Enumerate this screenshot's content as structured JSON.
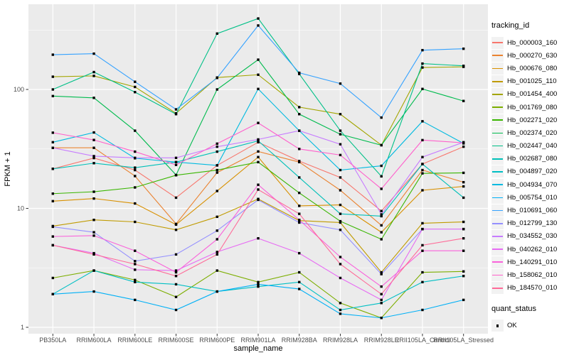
{
  "figure": {
    "background": "#FFFFFF",
    "panel_background": "#EBEBEB",
    "grid_color": "#FFFFFF",
    "axis_text_color": "#4D4D4D",
    "axis_title_color": "#000000"
  },
  "chart_data": {
    "type": "line",
    "title": "",
    "xlabel": "sample_name",
    "ylabel": "FPKM + 1",
    "y_scale": "log10",
    "ylim": [
      1,
      450
    ],
    "y_tick_labels": [
      "1",
      "10",
      "100"
    ],
    "y_tick_values": [
      1,
      10,
      100
    ],
    "y_minor_gridline_values": [
      3.162,
      31.62,
      316.2
    ],
    "grid": "on",
    "legend_position": "right",
    "legend_title": "tracking_id",
    "point_legend": {
      "title": "quant_status",
      "items": [
        "OK"
      ],
      "point_color": "#000000"
    },
    "marker": "black-square",
    "categories": [
      "PB350LA",
      "RRIM600LA",
      "RRIM600LE",
      "RRIM600SE",
      "RRIM600PE",
      "RRIM901LA",
      "RRIM928BA",
      "RRIM928LA",
      "RRIM928LE",
      "RRII105LA_Control",
      "RRII105LA_Stressed"
    ],
    "series": [
      {
        "name": "Hb_000003_160",
        "color": "#F8766D",
        "values": [
          21.5,
          26.5,
          21,
          12.3,
          23,
          36,
          25,
          18.2,
          9.5,
          23.6,
          33
        ]
      },
      {
        "name": "Hb_000270_630",
        "color": "#EA8331",
        "values": [
          32.3,
          32.3,
          18.7,
          7.4,
          20,
          30.1,
          24.5,
          14.2,
          7.2,
          21,
          16.6
        ]
      },
      {
        "name": "Hb_000676_080",
        "color": "#D89000",
        "values": [
          11.5,
          12.1,
          11,
          7.3,
          14,
          27,
          10.5,
          10.7,
          6.3,
          14.2,
          15.3
        ]
      },
      {
        "name": "Hb_001025_110",
        "color": "#C09B00",
        "values": [
          7.1,
          8.0,
          7.7,
          6.6,
          8.5,
          12,
          7.9,
          7.6,
          2.9,
          7.5,
          7.7
        ]
      },
      {
        "name": "Hb_001454_400",
        "color": "#A3A500",
        "values": [
          128,
          130,
          105,
          63,
          126,
          133,
          71,
          62,
          34,
          153,
          155
        ]
      },
      {
        "name": "Hb_001769_080",
        "color": "#7CAE00",
        "values": [
          2.6,
          3.0,
          2.5,
          1.8,
          3.0,
          2.4,
          2.9,
          1.6,
          1.2,
          2.9,
          2.95
        ]
      },
      {
        "name": "Hb_002271_020",
        "color": "#39B600",
        "values": [
          13.3,
          13.8,
          15,
          19,
          21,
          24.5,
          13.5,
          7.8,
          5.5,
          19.7,
          19.9
        ]
      },
      {
        "name": "Hb_002374_020",
        "color": "#00BB4E",
        "values": [
          88,
          85,
          45,
          19.1,
          100,
          178,
          62,
          42,
          34,
          101,
          80
        ]
      },
      {
        "name": "Hb_002447_040",
        "color": "#00C087",
        "values": [
          100,
          140,
          95,
          62,
          295,
          395,
          135,
          45,
          18.6,
          165,
          158
        ]
      },
      {
        "name": "Hb_002687_080",
        "color": "#00C0B8",
        "values": [
          21.5,
          24,
          22,
          24.5,
          30,
          37,
          18.2,
          9.0,
          8.6,
          23.6,
          12.3
        ]
      },
      {
        "name": "Hb_004897_020",
        "color": "#00BFC4",
        "values": [
          1.9,
          3.0,
          2.4,
          2.3,
          2.0,
          2.2,
          2.4,
          1.4,
          1.6,
          2.4,
          2.7
        ]
      },
      {
        "name": "Hb_004934_070",
        "color": "#00BAE0",
        "values": [
          36,
          43.5,
          26.4,
          24.5,
          23,
          101,
          45,
          21,
          22.8,
          54,
          35.2
        ]
      },
      {
        "name": "Hb_005754_010",
        "color": "#00B0F6",
        "values": [
          1.9,
          2.0,
          1.7,
          1.4,
          2.0,
          2.3,
          2.1,
          1.3,
          1.2,
          1.4,
          1.7
        ]
      },
      {
        "name": "Hb_010691_060",
        "color": "#35A2FF",
        "values": [
          196,
          200,
          116,
          68,
          125,
          345,
          138,
          112,
          58,
          214,
          220
        ]
      },
      {
        "name": "Hb_012799_130",
        "color": "#9590FF",
        "values": [
          7.0,
          6.3,
          3.6,
          4.1,
          6.5,
          11.8,
          7.6,
          6.6,
          2.8,
          6.7,
          6.7
        ]
      },
      {
        "name": "Hb_034552_030",
        "color": "#C77CFF",
        "values": [
          32.3,
          27.5,
          26.6,
          26.6,
          33,
          38,
          45,
          34.6,
          8.9,
          27,
          36
        ]
      },
      {
        "name": "Hb_040262_010",
        "color": "#E76BF3",
        "values": [
          4.9,
          4.2,
          3.05,
          3.0,
          4.3,
          5.6,
          4.2,
          2.6,
          1.7,
          6.7,
          6.7
        ]
      },
      {
        "name": "Hb_140291_010",
        "color": "#FA62DB",
        "values": [
          5.8,
          5.9,
          4.4,
          2.9,
          5.5,
          15.8,
          8.0,
          3.9,
          2.2,
          4.4,
          4.4
        ]
      },
      {
        "name": "Hb_158062_010",
        "color": "#FF61CC",
        "values": [
          43.3,
          37.6,
          30,
          23.2,
          35,
          52.3,
          31.6,
          28.1,
          14.6,
          37.5,
          35.6
        ]
      },
      {
        "name": "Hb_184570_010",
        "color": "#FF6A98",
        "values": [
          4.9,
          4.1,
          3.4,
          2.7,
          4.1,
          14.4,
          9.0,
          3.4,
          1.9,
          4.9,
          5.6
        ]
      }
    ]
  }
}
